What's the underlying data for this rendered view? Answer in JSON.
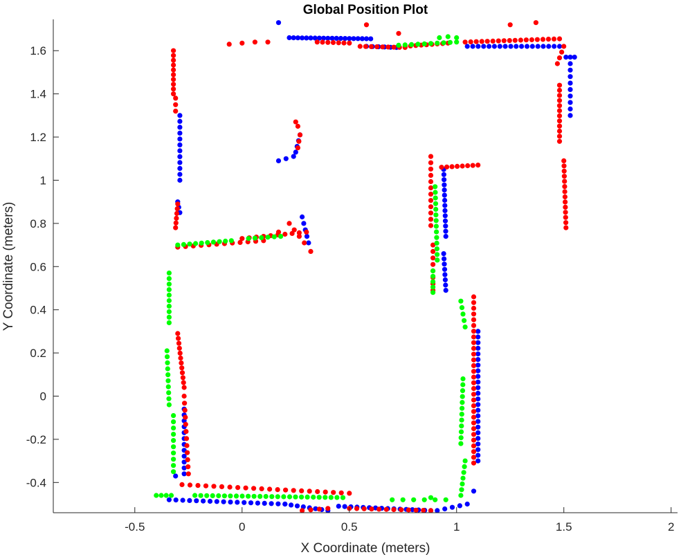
{
  "chart_data": {
    "type": "scatter",
    "title": "Global Position Plot",
    "xlabel": "X Coordinate (meters)",
    "ylabel": "Y Coordinate (meters)",
    "xlim": [
      -0.88,
      2.03
    ],
    "ylim": [
      -0.54,
      1.745
    ],
    "xticks": [
      -0.5,
      0,
      0.5,
      1,
      1.5,
      2
    ],
    "xtick_labels": [
      "-0.5",
      "0",
      "0.5",
      "1",
      "1.5",
      "2"
    ],
    "yticks": [
      -0.4,
      -0.2,
      0,
      0.2,
      0.4,
      0.6,
      0.8,
      1,
      1.2,
      1.4,
      1.6
    ],
    "ytick_labels": [
      "-0.4",
      "-0.2",
      "0",
      "0.2",
      "0.4",
      "0.6",
      "0.8",
      "1",
      "1.2",
      "1.4",
      "1.6"
    ],
    "grid": false,
    "series": [
      {
        "color": "#0000ff",
        "segments": [
          [
            0.22,
            1.66,
            0.6,
            1.655,
            20
          ],
          [
            0.58,
            1.62,
            0.72,
            1.615,
            6
          ],
          [
            1.05,
            1.62,
            1.48,
            1.62,
            18
          ],
          [
            1.53,
            1.57,
            1.53,
            1.3,
            10
          ],
          [
            1.55,
            1.57,
            1.51,
            1.57,
            2
          ],
          [
            -0.29,
            1.3,
            -0.29,
            1.0,
            12
          ],
          [
            -0.3,
            0.9,
            -0.29,
            0.85,
            3
          ],
          [
            0.27,
            1.21,
            0.25,
            1.13,
            4
          ],
          [
            0.17,
            1.09,
            0.24,
            1.11,
            3
          ],
          [
            0.28,
            0.83,
            0.31,
            0.71,
            5
          ],
          [
            0.94,
            1.05,
            0.95,
            0.74,
            14
          ],
          [
            0.94,
            0.66,
            0.95,
            0.49,
            8
          ],
          [
            1.1,
            0.3,
            1.1,
            -0.3,
            24
          ],
          [
            -0.27,
            -0.06,
            -0.27,
            -0.36,
            12
          ],
          [
            -0.34,
            -0.48,
            0.2,
            -0.5,
            18
          ],
          [
            0.2,
            -0.5,
            0.4,
            -0.53,
            8
          ],
          [
            0.45,
            -0.51,
            0.88,
            -0.53,
            16
          ],
          [
            0.91,
            -0.53,
            1.05,
            -0.5,
            5
          ]
        ],
        "points": [
          [
            0.17,
            1.73
          ],
          [
            -0.31,
            -0.37
          ],
          [
            1.08,
            -0.44
          ]
        ]
      },
      {
        "color": "#ff0000",
        "segments": [
          [
            -0.32,
            1.6,
            -0.32,
            1.4,
            10
          ],
          [
            -0.31,
            1.38,
            -0.31,
            1.32,
            3
          ],
          [
            0.35,
            1.64,
            0.5,
            1.635,
            7
          ],
          [
            0.55,
            1.62,
            0.76,
            1.615,
            9
          ],
          [
            0.76,
            1.62,
            0.96,
            1.635,
            9
          ],
          [
            1.04,
            1.64,
            1.48,
            1.655,
            18
          ],
          [
            1.5,
            1.62,
            1.47,
            1.54,
            4
          ],
          [
            1.48,
            1.44,
            1.48,
            1.18,
            12
          ],
          [
            1.5,
            1.09,
            1.51,
            0.78,
            14
          ],
          [
            0.25,
            1.27,
            0.26,
            1.25,
            2
          ],
          [
            0.27,
            1.21,
            0.26,
            1.15,
            3
          ],
          [
            -0.3,
            0.89,
            -0.31,
            0.78,
            6
          ],
          [
            -0.3,
            0.69,
            0.1,
            0.72,
            12
          ],
          [
            0.0,
            0.73,
            0.3,
            0.76,
            10
          ],
          [
            0.22,
            0.8,
            0.29,
            0.71,
            4
          ],
          [
            0.88,
            1.11,
            0.88,
            0.79,
            12
          ],
          [
            0.93,
            1.06,
            1.1,
            1.07,
            8
          ],
          [
            0.89,
            0.7,
            0.89,
            0.49,
            8
          ],
          [
            1.08,
            0.46,
            1.08,
            -0.31,
            30
          ],
          [
            -0.3,
            0.29,
            -0.27,
            0.04,
            12
          ],
          [
            -0.27,
            0.0,
            -0.25,
            -0.36,
            12
          ],
          [
            -0.28,
            -0.41,
            0.5,
            -0.45,
            22
          ],
          [
            0.5,
            -0.52,
            0.88,
            -0.53,
            12
          ],
          [
            0.28,
            -0.53,
            0.4,
            -0.52,
            4
          ]
        ],
        "points": [
          [
            -0.06,
            1.63
          ],
          [
            0.0,
            1.635
          ],
          [
            0.06,
            1.64
          ],
          [
            0.12,
            1.64
          ],
          [
            0.58,
            1.72
          ],
          [
            1.37,
            1.73
          ],
          [
            1.25,
            1.72
          ],
          [
            0.73,
            1.68
          ],
          [
            0.17,
            0.76
          ],
          [
            0.32,
            0.67
          ]
        ]
      },
      {
        "color": "#00ff00",
        "segments": [
          [
            0.73,
            1.625,
            1.0,
            1.64,
            10
          ],
          [
            -0.3,
            0.7,
            -0.05,
            0.72,
            10
          ],
          [
            0.03,
            0.73,
            0.18,
            0.74,
            6
          ],
          [
            0.9,
            0.97,
            0.91,
            0.63,
            14
          ],
          [
            0.89,
            0.58,
            0.89,
            0.48,
            5
          ],
          [
            1.02,
            0.44,
            1.04,
            0.32,
            5
          ],
          [
            1.03,
            0.08,
            1.02,
            -0.22,
            12
          ],
          [
            1.04,
            -0.3,
            1.02,
            -0.46,
            7
          ],
          [
            -0.34,
            0.57,
            -0.34,
            0.34,
            10
          ],
          [
            -0.35,
            0.21,
            -0.34,
            -0.04,
            10
          ],
          [
            -0.32,
            -0.09,
            -0.32,
            -0.35,
            10
          ],
          [
            -0.4,
            -0.46,
            -0.33,
            -0.46,
            4
          ],
          [
            -0.22,
            -0.46,
            0.47,
            -0.47,
            26
          ],
          [
            0.7,
            -0.48,
            0.95,
            -0.48,
            6
          ]
        ],
        "points": [
          [
            0.92,
            1.66
          ],
          [
            0.96,
            1.665
          ],
          [
            1.0,
            1.66
          ],
          [
            0.88,
            -0.47
          ]
        ]
      }
    ]
  }
}
